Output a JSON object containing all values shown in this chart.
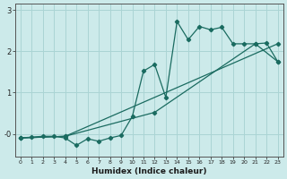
{
  "xlabel": "Humidex (Indice chaleur)",
  "bg_color": "#cceaea",
  "line_color": "#1a6b60",
  "grid_color": "#aad4d4",
  "xlim": [
    -0.5,
    23.5
  ],
  "ylim": [
    -0.55,
    3.15
  ],
  "yticks": [
    0,
    1,
    2,
    3
  ],
  "ytick_labels": [
    "-0",
    "1",
    "2",
    "3"
  ],
  "xticks": [
    0,
    1,
    2,
    3,
    4,
    5,
    6,
    7,
    8,
    9,
    10,
    11,
    12,
    13,
    14,
    15,
    16,
    17,
    18,
    19,
    20,
    21,
    22,
    23
  ],
  "line1_x": [
    0,
    1,
    2,
    3,
    4,
    5,
    6,
    7,
    8,
    9,
    10,
    11,
    12,
    13,
    14,
    15,
    16,
    17,
    18,
    19,
    20,
    21,
    22,
    23
  ],
  "line1_y": [
    -0.1,
    -0.08,
    -0.06,
    -0.06,
    -0.1,
    -0.28,
    -0.12,
    -0.18,
    -0.1,
    -0.04,
    0.42,
    1.52,
    1.68,
    0.88,
    2.72,
    2.28,
    2.6,
    2.52,
    2.58,
    2.18,
    2.18,
    2.18,
    2.2,
    1.75
  ],
  "line2_x": [
    0,
    4,
    23
  ],
  "line2_y": [
    -0.1,
    -0.06,
    2.18
  ],
  "line3_x": [
    0,
    4,
    12,
    21,
    23
  ],
  "line3_y": [
    -0.1,
    -0.06,
    0.52,
    2.18,
    1.75
  ]
}
